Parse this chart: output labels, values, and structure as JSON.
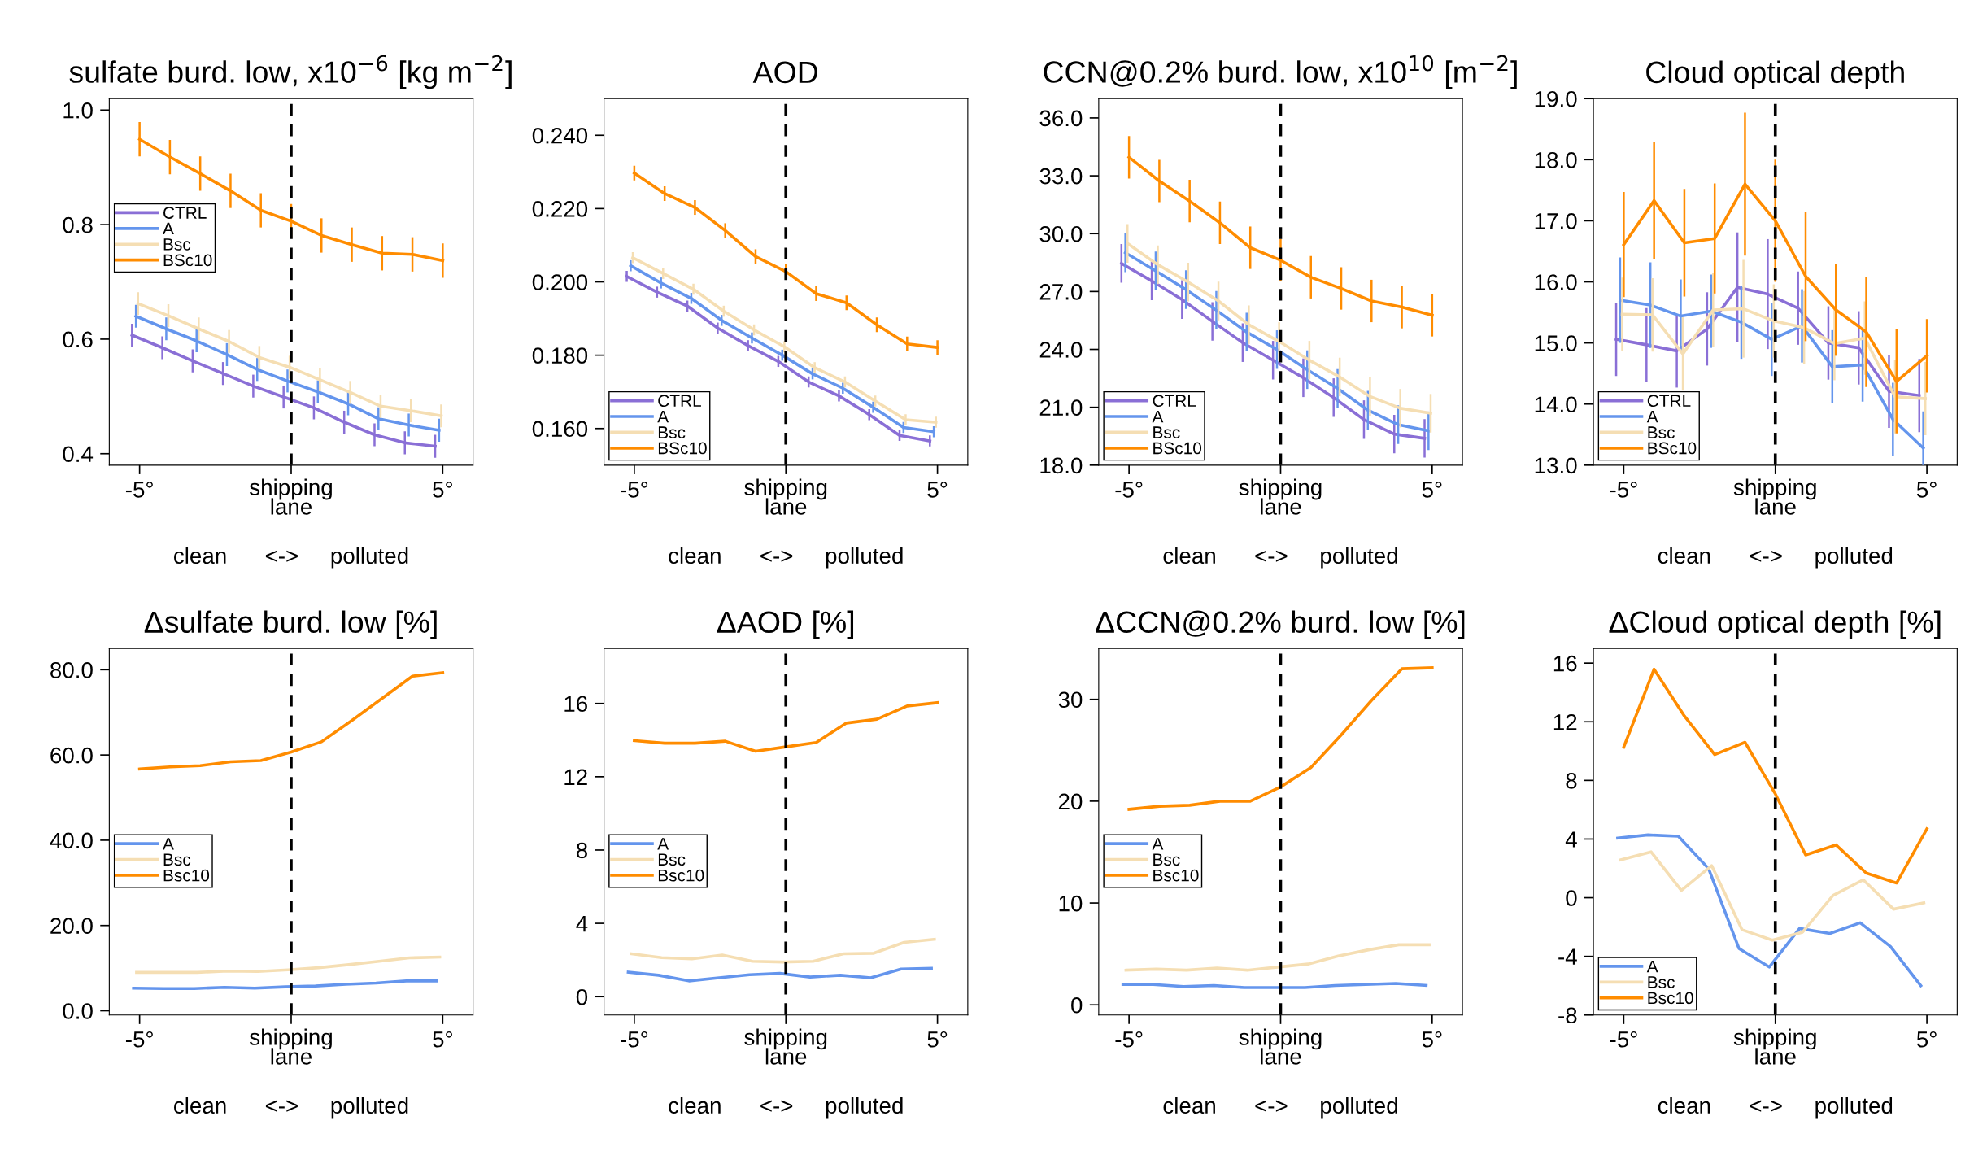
{
  "chart_data": [
    {
      "type": "line",
      "title": "sulfate burd. low, x10$^{−6}$ [kg m$^{−2}$]",
      "xlabel": "clean      <->     polluted",
      "annotations": [
        "shipping\nlane"
      ],
      "xlim": [
        -6,
        6
      ],
      "xticks": [
        {
          "value": -5,
          "label": "-5°"
        },
        {
          "value": 0,
          "label": null
        },
        {
          "value": 5,
          "label": "5°"
        }
      ],
      "ylim": [
        0.38,
        1.02
      ],
      "yticks": [
        {
          "value": 0.4,
          "label": "0.4"
        },
        {
          "value": 0.6,
          "label": "0.6"
        },
        {
          "value": 0.8,
          "label": "0.8"
        },
        {
          "value": 1.0,
          "label": "1.0"
        }
      ],
      "legend": "center left",
      "ref_lines": [
        {
          "axis": "x",
          "value": 0,
          "color": "#000000",
          "line_style": "dashed"
        }
      ],
      "series": [
        {
          "name": "CTRL",
          "color": "#8a6fd6",
          "x": [
            -5.25,
            -4.25,
            -3.25,
            -2.25,
            -1.25,
            -0.25,
            0.75,
            1.75,
            2.75,
            3.75,
            4.75
          ],
          "values": [
            0.607,
            0.585,
            0.562,
            0.54,
            0.518,
            0.499,
            0.48,
            0.455,
            0.433,
            0.419,
            0.413
          ],
          "errors": [
            0.02,
            0.02,
            0.02,
            0.02,
            0.02,
            0.02,
            0.02,
            0.02,
            0.02,
            0.02,
            0.02
          ]
        },
        {
          "name": "A",
          "color": "#6495ed",
          "x": [
            -5.12,
            -4.12,
            -3.12,
            -2.12,
            -1.12,
            -0.12,
            0.88,
            1.88,
            2.88,
            3.88,
            4.88
          ],
          "values": [
            0.64,
            0.618,
            0.597,
            0.573,
            0.547,
            0.527,
            0.508,
            0.487,
            0.461,
            0.45,
            0.441
          ],
          "errors": [
            0.02,
            0.02,
            0.02,
            0.02,
            0.02,
            0.02,
            0.02,
            0.02,
            0.02,
            0.02,
            0.02
          ]
        },
        {
          "name": "Bsc",
          "color": "#f5deb3",
          "x": [
            -5.05,
            -4.05,
            -3.05,
            -2.05,
            -1.05,
            -0.05,
            0.95,
            1.95,
            2.95,
            3.95,
            4.95
          ],
          "values": [
            0.662,
            0.641,
            0.618,
            0.596,
            0.568,
            0.551,
            0.529,
            0.507,
            0.483,
            0.475,
            0.466
          ],
          "errors": [
            0.02,
            0.02,
            0.02,
            0.02,
            0.02,
            0.02,
            0.02,
            0.02,
            0.02,
            0.02,
            0.02
          ]
        },
        {
          "name": "BSc10",
          "color": "#ff8c00",
          "x": [
            -5,
            -4,
            -3,
            -2,
            -1,
            0,
            1,
            2,
            3,
            4,
            5
          ],
          "values": [
            0.949,
            0.918,
            0.889,
            0.859,
            0.825,
            0.806,
            0.781,
            0.765,
            0.75,
            0.748,
            0.737
          ],
          "errors": [
            0.03,
            0.03,
            0.03,
            0.03,
            0.03,
            0.03,
            0.03,
            0.03,
            0.03,
            0.03,
            0.03
          ]
        }
      ]
    },
    {
      "type": "line",
      "title": "AOD",
      "xlabel": "clean      <->     polluted",
      "annotations": [
        "shipping\nlane"
      ],
      "xlim": [
        -6,
        6
      ],
      "xticks": [
        {
          "value": -5,
          "label": "-5°"
        },
        {
          "value": 0,
          "label": null
        },
        {
          "value": 5,
          "label": "5°"
        }
      ],
      "ylim": [
        0.15,
        0.25
      ],
      "yticks": [
        {
          "value": 0.16,
          "label": "0.160"
        },
        {
          "value": 0.18,
          "label": "0.180"
        },
        {
          "value": 0.2,
          "label": "0.200"
        },
        {
          "value": 0.22,
          "label": "0.220"
        },
        {
          "value": 0.24,
          "label": "0.240"
        }
      ],
      "legend": "bottom left",
      "ref_lines": [
        {
          "axis": "x",
          "value": 0,
          "color": "#000000",
          "line_style": "dashed"
        }
      ],
      "series": [
        {
          "name": "CTRL",
          "color": "#8a6fd6",
          "x": [
            -5.25,
            -4.25,
            -3.25,
            -2.25,
            -1.25,
            -0.25,
            0.75,
            1.75,
            2.75,
            3.75,
            4.75
          ],
          "values": [
            0.2015,
            0.1972,
            0.1934,
            0.1874,
            0.1826,
            0.1783,
            0.1727,
            0.1689,
            0.1638,
            0.1581,
            0.1566
          ],
          "errors": [
            0.0015,
            0.0015,
            0.0015,
            0.0015,
            0.0015,
            0.0015,
            0.0015,
            0.0015,
            0.0015,
            0.0015,
            0.0015
          ]
        },
        {
          "name": "A",
          "color": "#6495ed",
          "x": [
            -5.12,
            -4.12,
            -3.12,
            -2.12,
            -1.12,
            -0.12,
            0.88,
            1.88,
            2.88,
            3.88,
            4.88
          ],
          "values": [
            0.2044,
            0.1997,
            0.1955,
            0.1895,
            0.1847,
            0.18,
            0.1749,
            0.171,
            0.1658,
            0.1603,
            0.1591
          ],
          "errors": [
            0.0015,
            0.0015,
            0.0015,
            0.0015,
            0.0015,
            0.0015,
            0.0015,
            0.0015,
            0.0015,
            0.0015,
            0.0015
          ]
        },
        {
          "name": "Bsc",
          "color": "#f5deb3",
          "x": [
            -5.05,
            -4.05,
            -3.05,
            -2.05,
            -1.05,
            -0.05,
            0.95,
            1.95,
            2.95,
            3.95,
            4.95
          ],
          "values": [
            0.2066,
            0.2023,
            0.198,
            0.192,
            0.1869,
            0.1823,
            0.1766,
            0.1727,
            0.1675,
            0.1624,
            0.1617
          ],
          "errors": [
            0.0015,
            0.0015,
            0.0015,
            0.0015,
            0.0015,
            0.0015,
            0.0015,
            0.0015,
            0.0015,
            0.0015,
            0.0015
          ]
        },
        {
          "name": "BSc10",
          "color": "#ff8c00",
          "x": [
            -5,
            -4,
            -3,
            -2,
            -1,
            0,
            1,
            2,
            3,
            4,
            5
          ],
          "values": [
            0.2297,
            0.2241,
            0.2203,
            0.214,
            0.2069,
            0.2028,
            0.1968,
            0.1943,
            0.1883,
            0.1831,
            0.1821
          ],
          "errors": [
            0.002,
            0.002,
            0.002,
            0.002,
            0.002,
            0.002,
            0.002,
            0.002,
            0.002,
            0.002,
            0.002
          ]
        }
      ]
    },
    {
      "type": "line",
      "title": "CCN@0.2% burd. low, x10$^{10}$ [m$^{−2}$]",
      "xlabel": "clean      <->     polluted",
      "annotations": [
        "shipping\nlane"
      ],
      "xlim": [
        -6,
        6
      ],
      "xticks": [
        {
          "value": -5,
          "label": "-5°"
        },
        {
          "value": 0,
          "label": null
        },
        {
          "value": 5,
          "label": "5°"
        }
      ],
      "ylim": [
        18.0,
        37.0
      ],
      "yticks": [
        {
          "value": 18,
          "label": "18.0"
        },
        {
          "value": 21,
          "label": "21.0"
        },
        {
          "value": 24,
          "label": "24.0"
        },
        {
          "value": 27,
          "label": "27.0"
        },
        {
          "value": 30,
          "label": "30.0"
        },
        {
          "value": 33,
          "label": "33.0"
        },
        {
          "value": 36,
          "label": "36.0"
        }
      ],
      "legend": "bottom left",
      "ref_lines": [
        {
          "axis": "x",
          "value": 0,
          "color": "#000000",
          "line_style": "dashed"
        }
      ],
      "series": [
        {
          "name": "CTRL",
          "color": "#8a6fd6",
          "x": [
            -5.25,
            -4.25,
            -3.25,
            -2.25,
            -1.25,
            -0.25,
            0.75,
            1.75,
            2.75,
            3.75,
            4.75
          ],
          "values": [
            28.46,
            27.55,
            26.58,
            25.45,
            24.35,
            23.44,
            22.53,
            21.5,
            20.36,
            19.61,
            19.39
          ],
          "errors": [
            1.0,
            1.0,
            1.0,
            1.0,
            1.0,
            1.0,
            1.0,
            1.0,
            1.0,
            1.0,
            1.0
          ]
        },
        {
          "name": "A",
          "color": "#6495ed",
          "x": [
            -5.12,
            -4.12,
            -3.12,
            -2.12,
            -1.12,
            -0.12,
            0.88,
            1.88,
            2.88,
            3.88,
            4.88
          ],
          "values": [
            29.01,
            28.07,
            27.1,
            26.03,
            24.9,
            23.99,
            22.95,
            21.98,
            20.85,
            20.1,
            19.78
          ],
          "errors": [
            1.0,
            1.0,
            1.0,
            1.0,
            1.0,
            1.0,
            1.0,
            1.0,
            1.0,
            1.0,
            1.0
          ]
        },
        {
          "name": "Bsc",
          "color": "#f5deb3",
          "x": [
            -5.05,
            -4.05,
            -3.05,
            -2.05,
            -1.05,
            -0.05,
            0.95,
            1.95,
            2.95,
            3.95,
            4.95
          ],
          "values": [
            29.49,
            28.39,
            27.49,
            26.51,
            25.28,
            24.41,
            23.44,
            22.57,
            21.56,
            20.95,
            20.69
          ],
          "errors": [
            1.0,
            1.0,
            1.0,
            1.0,
            1.0,
            1.0,
            1.0,
            1.0,
            1.0,
            1.0,
            1.0
          ]
        },
        {
          "name": "BSc10",
          "color": "#ff8c00",
          "x": [
            -5,
            -4,
            -3,
            -2,
            -1,
            0,
            1,
            2,
            3,
            4,
            5
          ],
          "values": [
            33.96,
            32.73,
            31.69,
            30.56,
            29.27,
            28.62,
            27.74,
            27.16,
            26.51,
            26.19,
            25.77
          ],
          "errors": [
            1.1,
            1.1,
            1.1,
            1.1,
            1.1,
            1.1,
            1.1,
            1.1,
            1.1,
            1.1,
            1.1
          ]
        }
      ]
    },
    {
      "type": "line",
      "title": "Cloud optical depth",
      "xlabel": "clean      <->     polluted",
      "annotations": [
        "shipping\nlane"
      ],
      "xlim": [
        -6,
        6
      ],
      "xticks": [
        {
          "value": -5,
          "label": "-5°"
        },
        {
          "value": 0,
          "label": null
        },
        {
          "value": 5,
          "label": "5°"
        }
      ],
      "ylim": [
        13.0,
        19.0
      ],
      "yticks": [
        {
          "value": 13,
          "label": "13.0"
        },
        {
          "value": 14,
          "label": "14.0"
        },
        {
          "value": 15,
          "label": "15.0"
        },
        {
          "value": 16,
          "label": "16.0"
        },
        {
          "value": 17,
          "label": "17.0"
        },
        {
          "value": 18,
          "label": "18.0"
        },
        {
          "value": 19,
          "label": "19.0"
        }
      ],
      "legend": "bottom left",
      "ref_lines": [
        {
          "axis": "x",
          "value": 0,
          "color": "#000000",
          "line_style": "dashed"
        }
      ],
      "series": [
        {
          "name": "CTRL",
          "color": "#8a6fd6",
          "x": [
            -5.25,
            -4.25,
            -3.25,
            -2.25,
            -1.25,
            -0.25,
            0.75,
            1.75,
            2.75,
            3.75,
            4.75
          ],
          "values": [
            15.06,
            14.97,
            14.87,
            15.23,
            15.91,
            15.8,
            15.57,
            15.0,
            14.92,
            14.21,
            14.14
          ],
          "errors": [
            0.6,
            0.6,
            0.6,
            0.6,
            0.9,
            0.9,
            0.6,
            0.6,
            0.6,
            0.6,
            0.6
          ]
        },
        {
          "name": "A",
          "color": "#6495ed",
          "x": [
            -5.12,
            -4.12,
            -3.12,
            -2.12,
            -1.12,
            -0.12,
            0.88,
            1.88,
            2.88,
            3.88,
            4.88
          ],
          "values": [
            15.7,
            15.62,
            15.44,
            15.52,
            15.34,
            15.06,
            15.28,
            14.61,
            14.64,
            13.75,
            13.28
          ],
          "errors": [
            0.7,
            0.7,
            0.6,
            0.6,
            0.6,
            0.6,
            0.6,
            0.6,
            0.6,
            0.6,
            0.6
          ]
        },
        {
          "name": "Bsc",
          "color": "#f5deb3",
          "x": [
            -5.05,
            -4.05,
            -3.05,
            -2.05,
            -1.05,
            -0.05,
            0.95,
            1.95,
            2.95,
            3.95,
            4.95
          ],
          "values": [
            15.47,
            15.46,
            14.82,
            15.54,
            15.56,
            15.36,
            15.25,
            14.99,
            15.08,
            14.12,
            14.09
          ],
          "errors": [
            0.6,
            0.6,
            0.6,
            0.6,
            0.8,
            0.6,
            0.6,
            0.6,
            0.6,
            0.6,
            0.6
          ]
        },
        {
          "name": "BSc10",
          "color": "#ff8c00",
          "x": [
            -5,
            -4,
            -3,
            -2,
            -1,
            0,
            1,
            2,
            3,
            4,
            5
          ],
          "values": [
            16.61,
            17.33,
            16.64,
            16.71,
            17.6,
            17.0,
            16.09,
            15.54,
            15.18,
            14.37,
            14.79
          ],
          "errors": [
            0.86,
            0.96,
            0.88,
            0.9,
            1.17,
            1.0,
            1.06,
            0.75,
            0.9,
            0.85,
            0.6
          ]
        }
      ]
    },
    {
      "type": "line",
      "title": "Δsulfate burd. low [%]",
      "xlabel": "clean      <->     polluted",
      "annotations": [
        "shipping\nlane"
      ],
      "xlim": [
        -6,
        6
      ],
      "xticks": [
        {
          "value": -5,
          "label": "-5°"
        },
        {
          "value": 0,
          "label": null
        },
        {
          "value": 5,
          "label": "5°"
        }
      ],
      "ylim": [
        -1.0,
        85.0
      ],
      "yticks": [
        {
          "value": 0,
          "label": "0.0"
        },
        {
          "value": 20,
          "label": "20.0"
        },
        {
          "value": 40,
          "label": "40.0"
        },
        {
          "value": 60,
          "label": "60.0"
        },
        {
          "value": 80,
          "label": "80.0"
        }
      ],
      "legend": "center left",
      "ref_lines": [
        {
          "axis": "x",
          "value": 0,
          "color": "#000000",
          "line_style": "dashed"
        }
      ],
      "series": [
        {
          "name": "A",
          "color": "#6495ed",
          "x": [
            -5.2,
            -4.2,
            -3.2,
            -2.2,
            -1.2,
            -0.2,
            0.8,
            1.8,
            2.8,
            3.8,
            4.8
          ],
          "values": [
            5.3,
            5.2,
            5.2,
            5.5,
            5.3,
            5.6,
            5.8,
            6.2,
            6.5,
            7.0,
            7.0
          ]
        },
        {
          "name": "Bsc",
          "color": "#f5deb3",
          "x": [
            -5.1,
            -4.1,
            -3.1,
            -2.1,
            -1.1,
            -0.1,
            0.9,
            1.9,
            2.9,
            3.9,
            4.9
          ],
          "values": [
            9.0,
            9.0,
            9.0,
            9.3,
            9.2,
            9.6,
            10.1,
            10.8,
            11.6,
            12.4,
            12.6
          ]
        },
        {
          "name": "Bsc10",
          "color": "#ff8c00",
          "x": [
            -5,
            -4,
            -3,
            -2,
            -1,
            0,
            1,
            2,
            3,
            4,
            5
          ],
          "values": [
            56.7,
            57.2,
            57.5,
            58.4,
            58.7,
            60.7,
            63.1,
            68.1,
            73.3,
            78.5,
            79.3
          ]
        }
      ]
    },
    {
      "type": "line",
      "title": "ΔAOD [%]",
      "xlabel": "clean      <->     polluted",
      "annotations": [
        "shipping\nlane"
      ],
      "xlim": [
        -6,
        6
      ],
      "xticks": [
        {
          "value": -5,
          "label": "-5°"
        },
        {
          "value": 0,
          "label": null
        },
        {
          "value": 5,
          "label": "5°"
        }
      ],
      "ylim": [
        -1.0,
        19.0
      ],
      "yticks": [
        0,
        4,
        8,
        12,
        16
      ],
      "legend": "center left",
      "ref_lines": [
        {
          "axis": "x",
          "value": 0,
          "color": "#000000",
          "line_style": "dashed"
        }
      ],
      "series": [
        {
          "name": "A",
          "color": "#6495ed",
          "x": [
            -5.2,
            -4.2,
            -3.2,
            -2.2,
            -1.2,
            -0.2,
            0.8,
            1.8,
            2.8,
            3.8,
            4.8
          ],
          "values": [
            1.34,
            1.17,
            0.86,
            1.03,
            1.2,
            1.27,
            1.07,
            1.17,
            1.03,
            1.51,
            1.55
          ]
        },
        {
          "name": "Bsc",
          "color": "#f5deb3",
          "x": [
            -5.1,
            -4.1,
            -3.1,
            -2.1,
            -1.1,
            -0.1,
            0.9,
            1.9,
            2.9,
            3.9,
            4.9
          ],
          "values": [
            2.34,
            2.13,
            2.06,
            2.27,
            1.93,
            1.89,
            1.93,
            2.34,
            2.37,
            2.96,
            3.13
          ]
        },
        {
          "name": "Bsc10",
          "color": "#ff8c00",
          "x": [
            -5,
            -4,
            -3,
            -2,
            -1,
            0,
            1,
            2,
            3,
            4,
            5
          ],
          "values": [
            13.97,
            13.83,
            13.83,
            13.94,
            13.39,
            13.63,
            13.87,
            14.93,
            15.14,
            15.86,
            16.04
          ]
        }
      ]
    },
    {
      "type": "line",
      "title": "ΔCCN@0.2% burd. low [%]",
      "xlabel": "clean      <->     polluted",
      "annotations": [
        "shipping\nlane"
      ],
      "xlim": [
        -6,
        6
      ],
      "xticks": [
        {
          "value": -5,
          "label": "-5°"
        },
        {
          "value": 0,
          "label": null
        },
        {
          "value": 5,
          "label": "5°"
        }
      ],
      "ylim": [
        -1.0,
        35.0
      ],
      "yticks": [
        0,
        10,
        20,
        30
      ],
      "legend": "center left",
      "ref_lines": [
        {
          "axis": "x",
          "value": 0,
          "color": "#000000",
          "line_style": "dashed"
        }
      ],
      "series": [
        {
          "name": "A",
          "color": "#6495ed",
          "x": [
            -5.2,
            -4.2,
            -3.2,
            -2.2,
            -1.2,
            -0.2,
            0.8,
            1.8,
            2.8,
            3.8,
            4.8
          ],
          "values": [
            2.0,
            2.0,
            1.8,
            1.9,
            1.7,
            1.7,
            1.7,
            1.9,
            2.0,
            2.1,
            1.9
          ]
        },
        {
          "name": "Bsc",
          "color": "#f5deb3",
          "x": [
            -5.1,
            -4.1,
            -3.1,
            -2.1,
            -1.1,
            -0.1,
            0.9,
            1.9,
            2.9,
            3.9,
            4.9
          ],
          "values": [
            3.4,
            3.5,
            3.4,
            3.6,
            3.4,
            3.7,
            4.0,
            4.8,
            5.4,
            5.9,
            5.9
          ]
        },
        {
          "name": "Bsc10",
          "color": "#ff8c00",
          "x": [
            -5,
            -4,
            -3,
            -2,
            -1,
            0,
            1,
            2,
            3,
            4,
            5
          ],
          "values": [
            19.2,
            19.5,
            19.6,
            20.0,
            20.0,
            21.4,
            23.3,
            26.5,
            29.9,
            33.0,
            33.1
          ]
        }
      ]
    },
    {
      "type": "line",
      "title": "ΔCloud optical depth [%]",
      "xlabel": "clean      <->     polluted",
      "annotations": [
        "shipping\nlane"
      ],
      "xlim": [
        -6,
        6
      ],
      "xticks": [
        {
          "value": -5,
          "label": "-5°"
        },
        {
          "value": 0,
          "label": null
        },
        {
          "value": 5,
          "label": "5°"
        }
      ],
      "ylim": [
        -8,
        17
      ],
      "yticks": [
        -8,
        -4,
        0,
        4,
        8,
        12,
        16
      ],
      "legend": "bottom left",
      "ref_lines": [
        {
          "axis": "x",
          "value": 0,
          "color": "#000000",
          "line_style": "dashed"
        }
      ],
      "series": [
        {
          "name": "A",
          "color": "#6495ed",
          "x": [
            -5.2,
            -4.2,
            -3.2,
            -2.2,
            -1.2,
            -0.2,
            0.8,
            1.8,
            2.8,
            3.8,
            4.8
          ],
          "values": [
            4.06,
            4.28,
            4.19,
            1.98,
            -3.46,
            -4.73,
            -2.1,
            -2.44,
            -1.71,
            -3.33,
            -6.0
          ]
        },
        {
          "name": "Bsc",
          "color": "#f5deb3",
          "x": [
            -5.1,
            -4.1,
            -3.1,
            -2.1,
            -1.1,
            -0.1,
            0.9,
            1.9,
            2.9,
            3.9,
            4.9
          ],
          "values": [
            2.58,
            3.13,
            0.49,
            2.19,
            -2.18,
            -2.9,
            -2.35,
            0.15,
            1.22,
            -0.78,
            -0.35
          ]
        },
        {
          "name": "Bsc10",
          "color": "#ff8c00",
          "x": [
            -5,
            -4,
            -3,
            -2,
            -1,
            0,
            1,
            2,
            3,
            4,
            5
          ],
          "values": [
            10.27,
            15.58,
            12.39,
            9.76,
            10.6,
            7.08,
            2.92,
            3.6,
            1.68,
            1.0,
            4.7
          ]
        }
      ]
    }
  ]
}
